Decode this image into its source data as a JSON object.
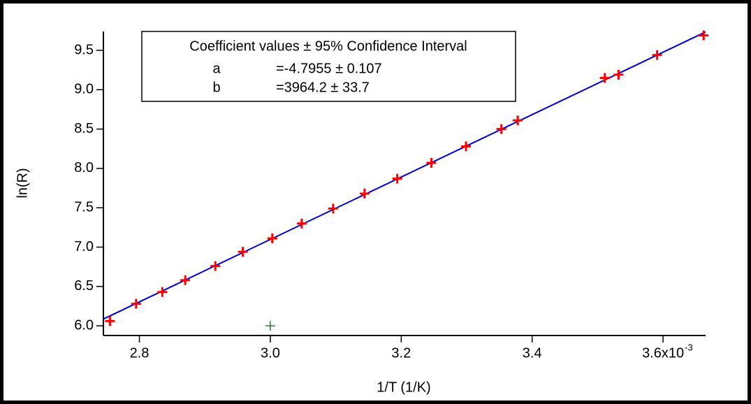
{
  "chart_data": {
    "type": "scatter",
    "x_label": "1/T (1/K)",
    "y_label": "ln(R)",
    "xlim": [
      2.745,
      3.665
    ],
    "ylim": [
      5.877,
      9.74
    ],
    "xticks": [
      2.8,
      {
        "value": 3.0,
        "label": "3.0"
      },
      3.2,
      3.4,
      {
        "value": 3.6,
        "label": "3.6x10"
      }
    ],
    "x_exponent": "-3",
    "yticks": [
      {
        "value": 6.0,
        "label": "6.0"
      },
      6.5,
      {
        "value": 7.0,
        "label": "7.0"
      },
      7.5,
      {
        "value": 8.0,
        "label": "8.0"
      },
      8.5,
      {
        "value": 9.0,
        "label": "9.0"
      },
      9.5
    ],
    "annotation": {
      "title": "Coefficient values ± 95% Confidence Interval",
      "rows": [
        [
          "a",
          "=-4.7955 ± 0.107"
        ],
        [
          "b",
          "=3964.2 ± 33.7"
        ]
      ]
    },
    "series": [
      {
        "marker": "line",
        "color": "#0000cc",
        "x": [
          2.745,
          3.665
        ],
        "values": [
          6.086,
          9.734
        ]
      },
      {
        "marker": "+",
        "color": "#ff0000",
        "x": [
          2.755,
          2.795,
          2.835,
          2.87,
          2.916,
          2.958,
          3.003,
          3.048,
          3.096,
          3.144,
          3.194,
          3.246,
          3.299,
          3.353,
          3.378,
          3.511,
          3.532,
          3.591,
          3.662
        ],
        "values": [
          6.06,
          6.28,
          6.43,
          6.58,
          6.76,
          6.94,
          7.11,
          7.3,
          7.49,
          7.68,
          7.87,
          8.07,
          8.28,
          8.5,
          8.61,
          9.15,
          9.19,
          9.44,
          9.69
        ]
      },
      {
        "marker": "+",
        "color": "#1a5c1a",
        "x": [
          3.0
        ],
        "values": [
          6.0
        ]
      }
    ]
  }
}
